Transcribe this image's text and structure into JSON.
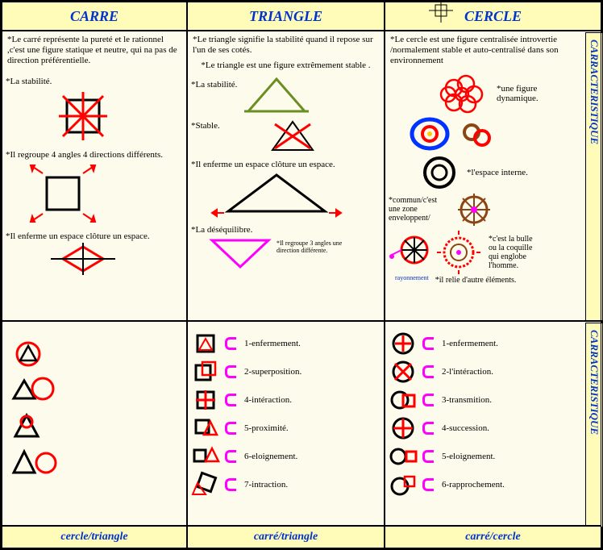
{
  "columns": {
    "carre": {
      "title": "CARRE",
      "footer": "cercle/triangle"
    },
    "triangle": {
      "title": "TRIANGLE",
      "footer": "carré/triangle"
    },
    "cercle": {
      "title": "CERCLE",
      "footer": "carré/cercle"
    }
  },
  "side_labels": {
    "top": "CARRACTERISTIQUE",
    "bottom": "CARRACTERISTIQUE"
  },
  "carre_texts": {
    "intro": "*Le carré représente la pureté et le rationnel ,c'est une figure statique et neutre, qui na pas de direction préférentielle.",
    "t1": "*La stabilité.",
    "t2": "*Il regroupe 4 angles 4 directions différents.",
    "t3": "*Il enferme un espace clôture un espace."
  },
  "triangle_texts": {
    "intro": "*Le triangle signifie la stabilité quand il repose sur l'un de ses cotés.",
    "sub": "*Le triangle est une figure extrêmement stable .",
    "t1": "*La stabilité.",
    "t2": "*Stable.",
    "t3": "*Il enferme un espace clôture un espace.",
    "t4": "*La déséquilibre.",
    "tiny": "*Il regroupe 3 angles une direction différente."
  },
  "cercle_texts": {
    "intro": "*Le cercle est une figure centralisée introvertie /normalement stable et auto-centralisé dans son environnement",
    "t1": "*une figure dynamique.",
    "t2": "*l'espace interne.",
    "t3": "*commun/c'est une zone enveloppent/",
    "t4": "*il relie d'autre éléments.",
    "t5": "*c'est la bulle ou la coquille qui englobe l'homme.",
    "tiny": "rayonnement"
  },
  "triangle_list": [
    "1-enfermement.",
    "2-superposition.",
    "4-intéraction.",
    "5-proximité.",
    "6-eloignement.",
    "7-intraction."
  ],
  "cercle_list": [
    "1-enfermement.",
    "2-l'intéraction.",
    "3-transmition.",
    "4-succession.",
    "5-eloignement.",
    "6-rapprochement."
  ],
  "colors": {
    "bg": "#fdfbec",
    "header_bg": "#fffbb8",
    "blue": "#0033cc",
    "red": "#ff0000",
    "olive": "#6b8e23",
    "magenta": "#ff00ff",
    "black": "#000000",
    "brown": "#8b4513"
  }
}
